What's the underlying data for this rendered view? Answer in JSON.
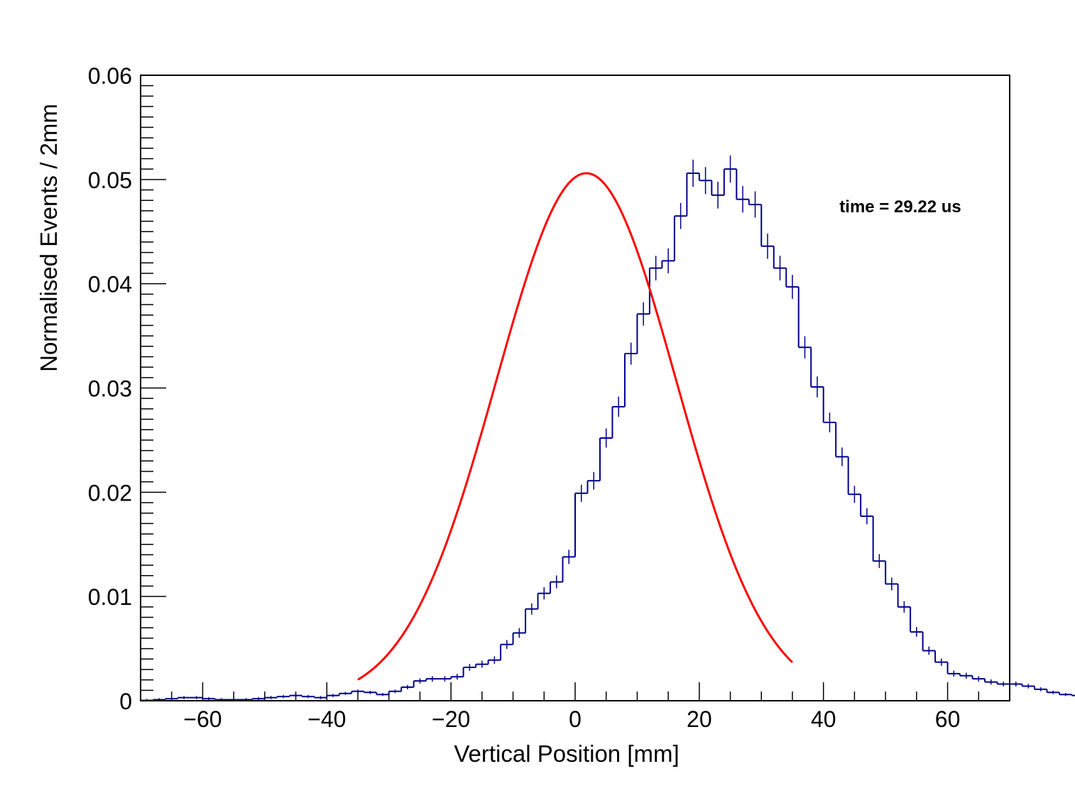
{
  "chart_data": {
    "type": "histogram",
    "xlabel": "Vertical Position [mm]",
    "ylabel": "Normalised Events / 2mm",
    "xlim": [
      -70,
      70
    ],
    "ylim": [
      0,
      0.06
    ],
    "x_ticks": [
      -60,
      -40,
      -20,
      0,
      20,
      40,
      60
    ],
    "x_tick_labels": [
      "−60",
      "−40",
      "−20",
      "0",
      "20",
      "40",
      "60"
    ],
    "y_ticks": [
      0,
      0.01,
      0.02,
      0.03,
      0.04,
      0.05,
      0.06
    ],
    "y_tick_labels": [
      "0",
      "0.01",
      "0.02",
      "0.03",
      "0.04",
      "0.05",
      "0.06"
    ],
    "annotation": "time = 29.22 us",
    "bin_width": 2,
    "bin_start": -70,
    "values": [
      3e-05,
      0.0001,
      0.0002,
      0.0003,
      0.0003,
      0.0002,
      0.0001,
      0.0001,
      0.0001,
      0.0002,
      0.0003,
      0.0004,
      0.0005,
      0.0004,
      0.0003,
      0.0005,
      0.0007,
      0.0009,
      0.0008,
      0.0006,
      0.0009,
      0.0013,
      0.0019,
      0.0021,
      0.0021,
      0.0023,
      0.0032,
      0.0035,
      0.0039,
      0.0054,
      0.0065,
      0.0088,
      0.0103,
      0.0114,
      0.0138,
      0.0199,
      0.0211,
      0.0252,
      0.0282,
      0.0333,
      0.0371,
      0.0415,
      0.0422,
      0.0465,
      0.0506,
      0.0499,
      0.0485,
      0.051,
      0.0481,
      0.0476,
      0.0436,
      0.0415,
      0.0397,
      0.0339,
      0.0301,
      0.0267,
      0.0234,
      0.0198,
      0.0177,
      0.0134,
      0.0112,
      0.009,
      0.0066,
      0.0048,
      0.0037,
      0.0026,
      0.0024,
      0.0021,
      0.0018,
      0.0016,
      0.0016,
      0.0014,
      0.0011,
      0.0008,
      0.0006,
      0.0005,
      0.0004,
      0.0005,
      0.0005,
      0.0004,
      0.0003,
      0.0003,
      0.0002,
      0.0002,
      0.0001,
      0.0001,
      0.0001,
      5e-05,
      2e-05,
      1e-05
    ],
    "series": [
      {
        "name": "",
        "type": "histogram",
        "color": "#00008b"
      },
      {
        "name": "",
        "type": "gaussian-fit",
        "color": "#ff0000",
        "range": [
          -35,
          35
        ],
        "amplitude": 0.0506,
        "mean": 1.8,
        "sigma": 14.5
      }
    ]
  }
}
